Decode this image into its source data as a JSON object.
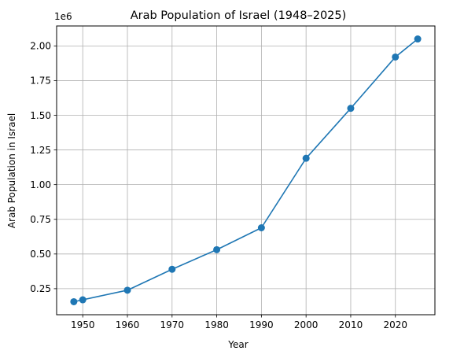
{
  "chart_data": {
    "type": "line",
    "title": "Arab Population of Israel (1948–2025)",
    "xlabel": "Year",
    "ylabel": "Arab Population in Israel",
    "y_offset_label": "1e6",
    "x": [
      1948,
      1950,
      1960,
      1970,
      1980,
      1990,
      2000,
      2010,
      2020,
      2025
    ],
    "series": [
      {
        "values": [
          156000,
          170000,
          239000,
          390000,
          531000,
          689000,
          1190000,
          1550000,
          1920000,
          2050000
        ],
        "color": "#1f77b4"
      }
    ],
    "xlim": [
      1944.15,
      2028.85
    ],
    "ylim": [
      62300,
      2143700
    ],
    "x_ticks": [
      1950,
      1960,
      1970,
      1980,
      1990,
      2000,
      2010,
      2020
    ],
    "x_tick_labels": [
      "1950",
      "1960",
      "1970",
      "1980",
      "1990",
      "2000",
      "2010",
      "2020"
    ],
    "y_ticks": [
      250000,
      500000,
      750000,
      1000000,
      1250000,
      1500000,
      1750000,
      2000000
    ],
    "y_tick_labels": [
      "0.25",
      "0.50",
      "0.75",
      "1.00",
      "1.25",
      "1.50",
      "1.75",
      "2.00"
    ],
    "grid": true,
    "marker": "circle"
  }
}
